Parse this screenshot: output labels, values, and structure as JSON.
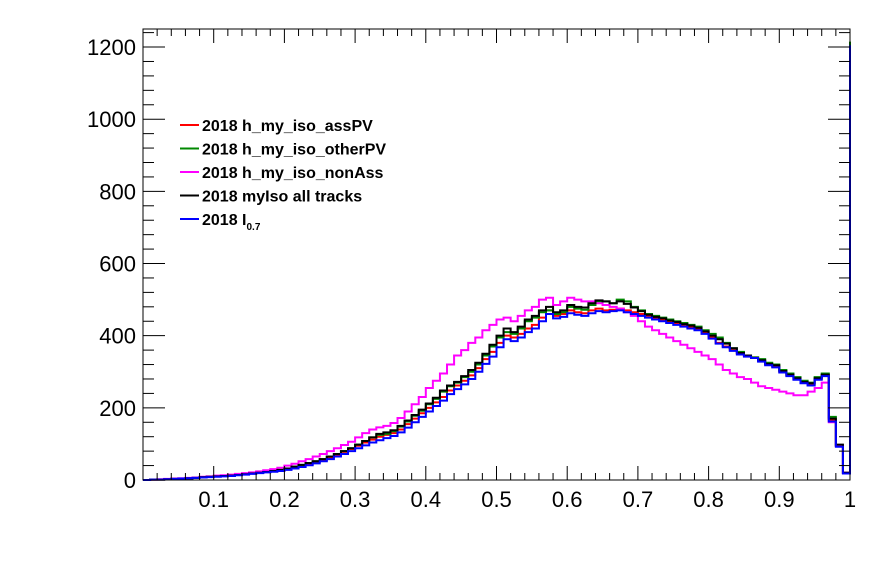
{
  "chart_data": {
    "type": "histogram",
    "xlim": [
      0.0,
      1.0
    ],
    "ylim": [
      0,
      1250
    ],
    "x_ticks": [
      {
        "value": 0.1,
        "label": "0.1"
      },
      {
        "value": 0.2,
        "label": "0.2"
      },
      {
        "value": 0.3,
        "label": "0.3"
      },
      {
        "value": 0.4,
        "label": "0.4"
      },
      {
        "value": 0.5,
        "label": "0.5"
      },
      {
        "value": 0.6,
        "label": "0.6"
      },
      {
        "value": 0.7,
        "label": "0.7"
      },
      {
        "value": 0.8,
        "label": "0.8"
      },
      {
        "value": 0.9,
        "label": "0.9"
      },
      {
        "value": 1.0,
        "label": "1"
      }
    ],
    "y_ticks": [
      {
        "value": 0,
        "label": "0"
      },
      {
        "value": 200,
        "label": "200"
      },
      {
        "value": 400,
        "label": "400"
      },
      {
        "value": 600,
        "label": "600"
      },
      {
        "value": 800,
        "label": "800"
      },
      {
        "value": 1000,
        "label": "1000"
      },
      {
        "value": 1200,
        "label": "1200"
      }
    ],
    "x_bin_edges": [
      0.0,
      0.01,
      0.02,
      0.03,
      0.04,
      0.05,
      0.06,
      0.07,
      0.08,
      0.09,
      0.1,
      0.11,
      0.12,
      0.13,
      0.14,
      0.15,
      0.16,
      0.17,
      0.18,
      0.19,
      0.2,
      0.21,
      0.22,
      0.23,
      0.24,
      0.25,
      0.26,
      0.27,
      0.28,
      0.29,
      0.3,
      0.31,
      0.32,
      0.33,
      0.34,
      0.35,
      0.36,
      0.37,
      0.38,
      0.39,
      0.4,
      0.41,
      0.42,
      0.43,
      0.44,
      0.45,
      0.46,
      0.47,
      0.48,
      0.49,
      0.5,
      0.51,
      0.52,
      0.53,
      0.54,
      0.55,
      0.56,
      0.57,
      0.58,
      0.59,
      0.6,
      0.61,
      0.62,
      0.63,
      0.64,
      0.65,
      0.66,
      0.67,
      0.68,
      0.69,
      0.7,
      0.71,
      0.72,
      0.73,
      0.74,
      0.75,
      0.76,
      0.77,
      0.78,
      0.79,
      0.8,
      0.81,
      0.82,
      0.83,
      0.84,
      0.85,
      0.86,
      0.87,
      0.88,
      0.89,
      0.9,
      0.91,
      0.92,
      0.93,
      0.94,
      0.95,
      0.96,
      0.97,
      0.98,
      0.99,
      1.0
    ],
    "legend_placement": "upper-left",
    "series": [
      {
        "name": "2018 h_my_iso_assPV",
        "color": "#ff0000",
        "values": [
          0,
          1,
          1,
          2,
          3,
          4,
          5,
          6,
          8,
          9,
          10,
          11,
          12,
          14,
          16,
          18,
          20,
          22,
          24,
          26,
          30,
          35,
          40,
          45,
          50,
          56,
          62,
          70,
          78,
          86,
          95,
          104,
          112,
          120,
          125,
          130,
          140,
          155,
          170,
          185,
          200,
          215,
          230,
          248,
          262,
          275,
          290,
          310,
          335,
          355,
          380,
          400,
          395,
          405,
          420,
          430,
          450,
          470,
          455,
          460,
          470,
          465,
          462,
          470,
          475,
          470,
          472,
          475,
          470,
          465,
          460,
          455,
          450,
          445,
          440,
          435,
          430,
          425,
          420,
          410,
          395,
          380,
          370,
          360,
          350,
          345,
          340,
          330,
          320,
          315,
          300,
          290,
          280,
          270,
          265,
          280,
          290,
          165,
          95,
          20,
          1210
        ]
      },
      {
        "name": "2018 h_my_iso_otherPV",
        "color": "#008800",
        "values": [
          0,
          1,
          1,
          2,
          3,
          4,
          5,
          6,
          8,
          9,
          10,
          11,
          12,
          14,
          16,
          18,
          20,
          22,
          25,
          28,
          32,
          37,
          42,
          47,
          52,
          58,
          65,
          72,
          80,
          88,
          98,
          108,
          118,
          125,
          128,
          135,
          148,
          162,
          178,
          192,
          210,
          225,
          245,
          260,
          270,
          285,
          300,
          320,
          345,
          370,
          395,
          410,
          405,
          420,
          440,
          450,
          465,
          470,
          460,
          465,
          480,
          475,
          472,
          485,
          495,
          495,
          490,
          500,
          495,
          480,
          470,
          460,
          455,
          450,
          445,
          440,
          435,
          430,
          425,
          415,
          405,
          395,
          380,
          365,
          355,
          345,
          340,
          335,
          325,
          320,
          305,
          295,
          285,
          275,
          270,
          285,
          295,
          175,
          95,
          20,
          1215
        ]
      },
      {
        "name": "2018 h_my_iso_nonAss",
        "color": "#ff00ff",
        "values": [
          0,
          1,
          2,
          3,
          4,
          5,
          6,
          7,
          9,
          10,
          12,
          13,
          15,
          17,
          19,
          21,
          24,
          27,
          30,
          34,
          40,
          45,
          52,
          58,
          65,
          72,
          80,
          88,
          97,
          106,
          118,
          130,
          140,
          146,
          150,
          158,
          172,
          190,
          210,
          230,
          255,
          275,
          295,
          320,
          345,
          360,
          380,
          395,
          415,
          430,
          445,
          450,
          440,
          455,
          470,
          480,
          500,
          505,
          485,
          495,
          505,
          500,
          495,
          495,
          490,
          485,
          480,
          475,
          465,
          455,
          440,
          425,
          415,
          405,
          395,
          385,
          375,
          365,
          355,
          345,
          335,
          320,
          305,
          295,
          285,
          280,
          270,
          260,
          255,
          250,
          245,
          240,
          235,
          235,
          245,
          255,
          270,
          160,
          95,
          20,
          1180
        ]
      },
      {
        "name": "2018 myIso all tracks",
        "color": "#000000",
        "values": [
          0,
          1,
          1,
          2,
          3,
          4,
          5,
          6,
          8,
          9,
          10,
          11,
          12,
          14,
          16,
          18,
          20,
          22,
          25,
          28,
          32,
          37,
          42,
          47,
          52,
          58,
          65,
          72,
          80,
          88,
          98,
          108,
          118,
          128,
          132,
          138,
          150,
          165,
          180,
          195,
          212,
          228,
          248,
          262,
          272,
          288,
          305,
          325,
          350,
          375,
          400,
          420,
          410,
          425,
          445,
          455,
          470,
          480,
          465,
          470,
          485,
          480,
          478,
          490,
          498,
          495,
          490,
          495,
          488,
          478,
          468,
          458,
          452,
          448,
          442,
          438,
          432,
          428,
          422,
          412,
          400,
          390,
          378,
          365,
          352,
          345,
          338,
          332,
          322,
          318,
          302,
          292,
          282,
          272,
          268,
          282,
          292,
          170,
          98,
          20,
          1100
        ]
      },
      {
        "name": "2018 I<sub>0.7</sub>",
        "color": "#0000ff",
        "values": [
          0,
          1,
          1,
          2,
          3,
          4,
          5,
          6,
          7,
          8,
          9,
          10,
          11,
          13,
          15,
          17,
          19,
          21,
          23,
          25,
          28,
          32,
          36,
          41,
          46,
          52,
          58,
          65,
          72,
          80,
          88,
          96,
          104,
          110,
          116,
          122,
          132,
          145,
          160,
          175,
          190,
          205,
          220,
          238,
          252,
          265,
          280,
          300,
          322,
          342,
          368,
          390,
          385,
          395,
          410,
          420,
          440,
          460,
          448,
          452,
          462,
          458,
          455,
          462,
          468,
          465,
          468,
          470,
          465,
          460,
          455,
          450,
          445,
          440,
          435,
          430,
          425,
          420,
          415,
          405,
          392,
          378,
          368,
          358,
          348,
          342,
          338,
          328,
          318,
          312,
          298,
          288,
          278,
          268,
          262,
          278,
          288,
          162,
          92,
          18,
          1205
        ]
      }
    ]
  }
}
